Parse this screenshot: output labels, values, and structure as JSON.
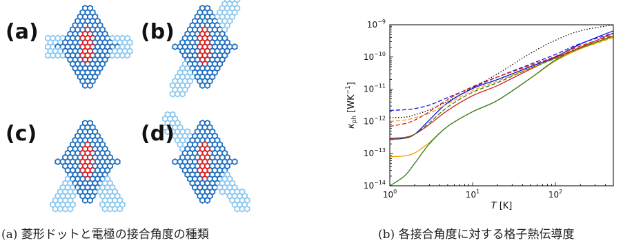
{
  "figure_a": {
    "panels": [
      "(a)",
      "(b)",
      "(c)",
      "(d)"
    ],
    "colors": {
      "lattice": "#1f6fc0",
      "lead": "#8cc8ef",
      "dot": "#d92020"
    },
    "caption": "(a) 菱形ドットと電極の接合角度の種類"
  },
  "figure_b": {
    "caption": "(b) 各接合角度に対する格子熱伝導度"
  },
  "chart_data": {
    "type": "line",
    "xscale": "log",
    "yscale": "log",
    "xlim": [
      1,
      500
    ],
    "ylim": [
      1e-14,
      1e-09
    ],
    "xlabel": {
      "italic": "T",
      "unit": " [K]"
    },
    "ylabel": {
      "sym": "κ",
      "sub": "ph",
      "unit": "[WK",
      "sup": "−1",
      "close": "]"
    },
    "xticks": [
      {
        "value": 1,
        "base": "10",
        "exp": "0"
      },
      {
        "value": 10,
        "base": "10",
        "exp": "1"
      },
      {
        "value": 100,
        "base": "10",
        "exp": "2"
      }
    ],
    "yticks": [
      {
        "value": 1e-14,
        "base": "10",
        "exp": "−14"
      },
      {
        "value": 1e-13,
        "base": "10",
        "exp": "−13"
      },
      {
        "value": 1e-12,
        "base": "10",
        "exp": "−12"
      },
      {
        "value": 1e-11,
        "base": "10",
        "exp": "−11"
      },
      {
        "value": 1e-10,
        "base": "10",
        "exp": "−10"
      },
      {
        "value": 1e-09,
        "base": "10",
        "exp": "−9"
      }
    ],
    "series": [
      {
        "color": "#000000",
        "dash": "dotted",
        "x": [
          1,
          1.5,
          2,
          3,
          5,
          10,
          20,
          50,
          100,
          200,
          500
        ],
        "y": [
          1.3e-12,
          1.35e-12,
          1.6e-12,
          2.3e-12,
          4.2e-12,
          1.1e-11,
          3e-11,
          1.3e-10,
          3.3e-10,
          6.5e-10,
          1e-09
        ]
      },
      {
        "color": "#1010d8",
        "dash": "solid",
        "x": [
          1,
          1.5,
          2,
          3,
          5,
          10,
          20,
          50,
          100,
          200,
          500
        ],
        "y": [
          2.8e-13,
          3e-13,
          4e-13,
          1.1e-12,
          3.8e-12,
          1.05e-11,
          2e-11,
          5e-11,
          1e-10,
          2.5e-10,
          6.5e-10
        ]
      },
      {
        "color": "#d82020",
        "dash": "solid",
        "x": [
          1,
          1.5,
          2,
          3,
          5,
          10,
          20,
          50,
          100,
          200,
          500
        ],
        "y": [
          3e-13,
          3.2e-13,
          4e-13,
          8e-13,
          2.2e-12,
          6.3e-12,
          1.3e-11,
          4.2e-11,
          9.5e-11,
          2e-10,
          5.5e-10
        ]
      },
      {
        "color": "#f0a000",
        "dash": "solid",
        "x": [
          1,
          1.5,
          2,
          3,
          5,
          10,
          20,
          50,
          100,
          200,
          500
        ],
        "y": [
          8e-14,
          8.5e-14,
          1.05e-13,
          2.2e-13,
          7e-13,
          2e-12,
          4.5e-12,
          2.2e-11,
          7.5e-11,
          1.8e-10,
          4.2e-10
        ]
      },
      {
        "color": "#2e7d1a",
        "dash": "solid",
        "x": [
          1,
          1.5,
          2,
          3,
          5,
          10,
          20,
          50,
          100,
          200,
          500
        ],
        "y": [
          1e-14,
          2e-14,
          5e-14,
          2e-13,
          7e-13,
          2e-12,
          4.5e-12,
          2.2e-11,
          8e-11,
          1.9e-10,
          4.5e-10
        ]
      },
      {
        "color": "#1010d8",
        "dash": "dashed",
        "x": [
          1,
          1.5,
          2,
          3,
          5,
          10,
          20,
          50,
          100,
          200,
          500
        ],
        "y": [
          2.2e-12,
          2.3e-12,
          2.5e-12,
          3.2e-12,
          5.5e-12,
          1.15e-11,
          2.4e-11,
          6e-11,
          1.2e-10,
          2.6e-10,
          5.5e-10
        ]
      },
      {
        "color": "#d82020",
        "dash": "dashed",
        "x": [
          1,
          1.5,
          2,
          3,
          5,
          10,
          20,
          50,
          100,
          200,
          500
        ],
        "y": [
          7e-13,
          8.5e-13,
          1.1e-12,
          2e-12,
          4.8e-12,
          1.2e-11,
          2.4e-11,
          5.5e-11,
          1.05e-10,
          2.2e-10,
          4.8e-10
        ]
      },
      {
        "color": "#f0a000",
        "dash": "dashed",
        "x": [
          1,
          1.5,
          2,
          3,
          5,
          10,
          20,
          50,
          100,
          200,
          500
        ],
        "y": [
          1e-12,
          1.1e-12,
          1.3e-12,
          1.8e-12,
          3.5e-12,
          9e-12,
          1.8e-11,
          4.5e-11,
          9e-11,
          1.8e-10,
          4e-10
        ]
      },
      {
        "color": "#2e7d1a",
        "dash": "dashed",
        "x": [
          1,
          1.5,
          2,
          3,
          5,
          10,
          20,
          50,
          100,
          200,
          500
        ],
        "y": [
          2.7e-13,
          3e-13,
          4e-13,
          9e-13,
          2.8e-12,
          8e-12,
          1.6e-11,
          4.5e-11,
          9e-11,
          1.9e-10,
          4.5e-10
        ]
      }
    ]
  }
}
